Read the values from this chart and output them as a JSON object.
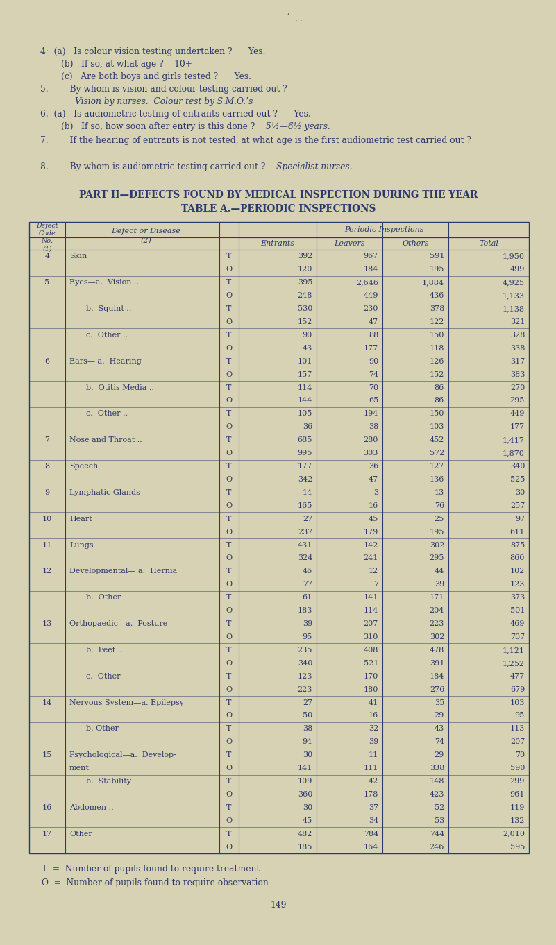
{
  "bg_color": "#d8d2b5",
  "text_color": "#2b3a6b",
  "page_width": 8.01,
  "page_height": 13.62,
  "part_title1": "PART II—DEFECTS FOUND BY MEDICAL INSPECTION DURING THE YEAR",
  "part_title2": "TABLE A.—PERIODIC INSPECTIONS",
  "table_rows": [
    {
      "code": "4",
      "disease": "Skin",
      "sub": "",
      "to": "T",
      "entrants": "392",
      "leavers": "967",
      "others": "591",
      "total": "1,950"
    },
    {
      "code": "",
      "disease": "",
      "sub": "",
      "to": "O",
      "entrants": "120",
      "leavers": "184",
      "others": "195",
      "total": "499"
    },
    {
      "code": "5",
      "disease": "Eyes—a.  Vision ..",
      "sub": "",
      "to": "T",
      "entrants": "395",
      "leavers": "2,646",
      "others": "1,884",
      "total": "4,925"
    },
    {
      "code": "",
      "disease": "",
      "sub": "",
      "to": "O",
      "entrants": "248",
      "leavers": "449",
      "others": "436",
      "total": "1,133"
    },
    {
      "code": "",
      "disease": "",
      "sub": "b.  Squint ..",
      "to": "T",
      "entrants": "530",
      "leavers": "230",
      "others": "378",
      "total": "1,138"
    },
    {
      "code": "",
      "disease": "",
      "sub": "",
      "to": "O",
      "entrants": "152",
      "leavers": "47",
      "others": "122",
      "total": "321"
    },
    {
      "code": "",
      "disease": "",
      "sub": "c.  Other ..",
      "to": "T",
      "entrants": "90",
      "leavers": "88",
      "others": "150",
      "total": "328"
    },
    {
      "code": "",
      "disease": "",
      "sub": "",
      "to": "O",
      "entrants": "43",
      "leavers": "177",
      "others": "118",
      "total": "338"
    },
    {
      "code": "6",
      "disease": "Ears— a.  Hearing",
      "sub": "",
      "to": "T",
      "entrants": "101",
      "leavers": "90",
      "others": "126",
      "total": "317"
    },
    {
      "code": "",
      "disease": "",
      "sub": "",
      "to": "O",
      "entrants": "157",
      "leavers": "74",
      "others": "152",
      "total": "383"
    },
    {
      "code": "",
      "disease": "",
      "sub": "b.  Otitis Media ..",
      "to": "T",
      "entrants": "114",
      "leavers": "70",
      "others": "86",
      "total": "270"
    },
    {
      "code": "",
      "disease": "",
      "sub": "",
      "to": "O",
      "entrants": "144",
      "leavers": "65",
      "others": "86",
      "total": "295"
    },
    {
      "code": "",
      "disease": "",
      "sub": "c.  Other ..",
      "to": "T",
      "entrants": "105",
      "leavers": "194",
      "others": "150",
      "total": "449"
    },
    {
      "code": "",
      "disease": "",
      "sub": "",
      "to": "O",
      "entrants": "36",
      "leavers": "38",
      "others": "103",
      "total": "177"
    },
    {
      "code": "7",
      "disease": "Nose and Throat ..",
      "sub": "",
      "to": "T",
      "entrants": "685",
      "leavers": "280",
      "others": "452",
      "total": "1,417"
    },
    {
      "code": "",
      "disease": "",
      "sub": "",
      "to": "O",
      "entrants": "995",
      "leavers": "303",
      "others": "572",
      "total": "1,870"
    },
    {
      "code": "8",
      "disease": "Speech",
      "sub": "",
      "to": "T",
      "entrants": "177",
      "leavers": "36",
      "others": "127",
      "total": "340"
    },
    {
      "code": "",
      "disease": "",
      "sub": "",
      "to": "O",
      "entrants": "342",
      "leavers": "47",
      "others": "136",
      "total": "525"
    },
    {
      "code": "9",
      "disease": "Lymphatic Glands",
      "sub": "",
      "to": "T",
      "entrants": "14",
      "leavers": "3",
      "others": "13",
      "total": "30"
    },
    {
      "code": "",
      "disease": "",
      "sub": "",
      "to": "O",
      "entrants": "165",
      "leavers": "16",
      "others": "76",
      "total": "257"
    },
    {
      "code": "10",
      "disease": "Heart",
      "sub": "",
      "to": "T",
      "entrants": "27",
      "leavers": "45",
      "others": "25",
      "total": "97"
    },
    {
      "code": "",
      "disease": "",
      "sub": "",
      "to": "O",
      "entrants": "237",
      "leavers": "179",
      "others": "195",
      "total": "611"
    },
    {
      "code": "11",
      "disease": "Lungs",
      "sub": "",
      "to": "T",
      "entrants": "431",
      "leavers": "142",
      "others": "302",
      "total": "875"
    },
    {
      "code": "",
      "disease": "",
      "sub": "",
      "to": "O",
      "entrants": "324",
      "leavers": "241",
      "others": "295",
      "total": "860"
    },
    {
      "code": "12",
      "disease": "Developmental— a.  Hernia",
      "sub": "",
      "to": "T",
      "entrants": "46",
      "leavers": "12",
      "others": "44",
      "total": "102"
    },
    {
      "code": "",
      "disease": "",
      "sub": "",
      "to": "O",
      "entrants": "77",
      "leavers": "7",
      "others": "39",
      "total": "123"
    },
    {
      "code": "",
      "disease": "",
      "sub": "b.  Other",
      "to": "T",
      "entrants": "61",
      "leavers": "141",
      "others": "171",
      "total": "373"
    },
    {
      "code": "",
      "disease": "",
      "sub": "",
      "to": "O",
      "entrants": "183",
      "leavers": "114",
      "others": "204",
      "total": "501"
    },
    {
      "code": "13",
      "disease": "Orthopaedic—a.  Posture",
      "sub": "",
      "to": "T",
      "entrants": "39",
      "leavers": "207",
      "others": "223",
      "total": "469"
    },
    {
      "code": "",
      "disease": "",
      "sub": "",
      "to": "O",
      "entrants": "95",
      "leavers": "310",
      "others": "302",
      "total": "707"
    },
    {
      "code": "",
      "disease": "",
      "sub": "b.  Feet ..",
      "to": "T",
      "entrants": "235",
      "leavers": "408",
      "others": "478",
      "total": "1,121"
    },
    {
      "code": "",
      "disease": "",
      "sub": "",
      "to": "O",
      "entrants": "340",
      "leavers": "521",
      "others": "391",
      "total": "1,252"
    },
    {
      "code": "",
      "disease": "",
      "sub": "c.  Other",
      "to": "T",
      "entrants": "123",
      "leavers": "170",
      "others": "184",
      "total": "477"
    },
    {
      "code": "",
      "disease": "",
      "sub": "",
      "to": "O",
      "entrants": "223",
      "leavers": "180",
      "others": "276",
      "total": "679"
    },
    {
      "code": "14",
      "disease": "Nervous System—a. Epilepsy",
      "sub": "",
      "to": "T",
      "entrants": "27",
      "leavers": "41",
      "others": "35",
      "total": "103"
    },
    {
      "code": "",
      "disease": "",
      "sub": "",
      "to": "O",
      "entrants": "50",
      "leavers": "16",
      "others": "29",
      "total": "95"
    },
    {
      "code": "",
      "disease": "",
      "sub": "b. Other",
      "to": "T",
      "entrants": "38",
      "leavers": "32",
      "others": "43",
      "total": "113"
    },
    {
      "code": "",
      "disease": "",
      "sub": "",
      "to": "O",
      "entrants": "94",
      "leavers": "39",
      "others": "74",
      "total": "207"
    },
    {
      "code": "15",
      "disease": "Psychological—a.  Develop-",
      "sub": "",
      "to": "T",
      "entrants": "30",
      "leavers": "11",
      "others": "29",
      "total": "70"
    },
    {
      "code": "",
      "disease": "ment",
      "sub": "",
      "to": "O",
      "entrants": "141",
      "leavers": "111",
      "others": "338",
      "total": "590"
    },
    {
      "code": "",
      "disease": "",
      "sub": "b.  Stability",
      "to": "T",
      "entrants": "109",
      "leavers": "42",
      "others": "148",
      "total": "299"
    },
    {
      "code": "",
      "disease": "",
      "sub": "",
      "to": "O",
      "entrants": "360",
      "leavers": "178",
      "others": "423",
      "total": "961"
    },
    {
      "code": "16",
      "disease": "Abdomen ..",
      "sub": "",
      "to": "T",
      "entrants": "30",
      "leavers": "37",
      "others": "52",
      "total": "119"
    },
    {
      "code": "",
      "disease": "",
      "sub": "",
      "to": "O",
      "entrants": "45",
      "leavers": "34",
      "others": "53",
      "total": "132"
    },
    {
      "code": "17",
      "disease": "Other",
      "sub": "",
      "to": "T",
      "entrants": "482",
      "leavers": "784",
      "others": "744",
      "total": "2,010"
    },
    {
      "code": "",
      "disease": "",
      "sub": "",
      "to": "O",
      "entrants": "185",
      "leavers": "164",
      "others": "246",
      "total": "595"
    }
  ],
  "footnote1": "T  =  Number of pupils found to require treatment",
  "footnote2": "O  =  Number of pupils found to require observation",
  "page_num": "149"
}
